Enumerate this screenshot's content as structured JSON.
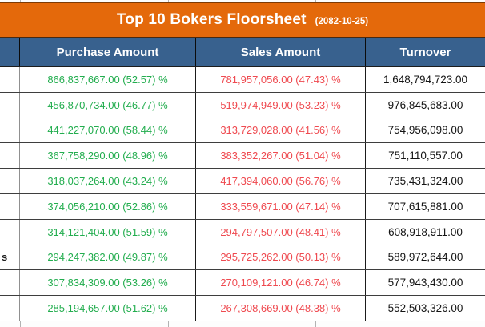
{
  "title": {
    "text": "Top 10 Bokers Floorsheet",
    "date": "(2082-10-25)"
  },
  "table": {
    "columns": [
      "",
      "Purchase Amount",
      "Sales Amount",
      "Turnover"
    ],
    "rows": [
      {
        "name": "",
        "purchase": "866,837,667.00 (52.57) %",
        "sales": "781,957,056.00 (47.43) %",
        "turnover": "1,648,794,723.00"
      },
      {
        "name": "",
        "purchase": "456,870,734.00 (46.77) %",
        "sales": "519,974,949.00 (53.23) %",
        "turnover": "976,845,683.00"
      },
      {
        "name": "",
        "purchase": "441,227,070.00 (58.44) %",
        "sales": "313,729,028.00 (41.56) %",
        "turnover": "754,956,098.00"
      },
      {
        "name": "",
        "purchase": "367,758,290.00 (48.96) %",
        "sales": "383,352,267.00 (51.04) %",
        "turnover": "751,110,557.00"
      },
      {
        "name": "",
        "purchase": "318,037,264.00 (43.24) %",
        "sales": "417,394,060.00 (56.76) %",
        "turnover": "735,431,324.00"
      },
      {
        "name": "",
        "purchase": "374,056,210.00 (52.86) %",
        "sales": "333,559,671.00 (47.14) %",
        "turnover": "707,615,881.00"
      },
      {
        "name": "",
        "purchase": "314,121,404.00 (51.59) %",
        "sales": "294,797,507.00 (48.41) %",
        "turnover": "608,918,911.00"
      },
      {
        "name": "s",
        "purchase": "294,247,382.00 (49.87) %",
        "sales": "295,725,262.00 (50.13) %",
        "turnover": "589,972,644.00"
      },
      {
        "name": "",
        "purchase": "307,834,309.00 (53.26) %",
        "sales": "270,109,121.00 (46.74) %",
        "turnover": "577,943,430.00"
      },
      {
        "name": "",
        "purchase": "285,194,657.00 (51.62) %",
        "sales": "267,308,669.00 (48.38) %",
        "turnover": "552,503,326.00"
      }
    ]
  },
  "colors": {
    "title_bar_orange": "#E4690B",
    "header_blue": "#38618E",
    "purchase_green": "#22AD4E",
    "sales_red": "#EF4A50",
    "turnover_text": "#141414",
    "grid_line": "#3E3E3E"
  }
}
